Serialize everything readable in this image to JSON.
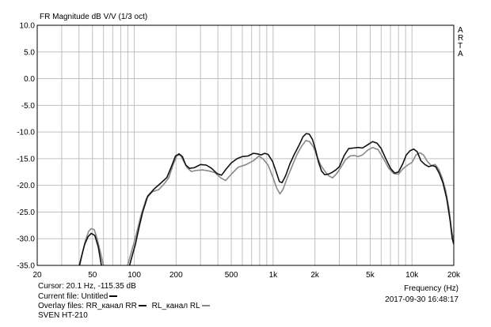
{
  "chart_data": {
    "type": "line",
    "title": "FR Magnitude dB V/V (1/3 oct)",
    "xlabel": "Frequency (Hz)",
    "ylabel": "",
    "xscale": "log",
    "xlim": [
      20,
      20000
    ],
    "ylim": [
      -35,
      10
    ],
    "grid": true,
    "y_ticks": [
      "10.0",
      "5.0",
      "0.0",
      "-5.0",
      "-10.0",
      "-15.0",
      "-20.0",
      "-25.0",
      "-30.0",
      "-35.0"
    ],
    "x_ticks": [
      {
        "value": 20,
        "label": "20"
      },
      {
        "value": 50,
        "label": "50"
      },
      {
        "value": 100,
        "label": "100"
      },
      {
        "value": 200,
        "label": "200"
      },
      {
        "value": 500,
        "label": "500"
      },
      {
        "value": 1000,
        "label": "1k"
      },
      {
        "value": 2000,
        "label": "2k"
      },
      {
        "value": 5000,
        "label": "5k"
      },
      {
        "value": 10000,
        "label": "10k"
      },
      {
        "value": 20000,
        "label": "20k"
      }
    ],
    "side_label": [
      "A",
      "R",
      "T",
      "A"
    ],
    "series": [
      {
        "name": "RR_канал RR",
        "color": "#111111",
        "segments": [
          [
            [
              40.2,
              -35
            ],
            [
              42,
              -33
            ],
            [
              44,
              -31
            ],
            [
              46.5,
              -29.6
            ],
            [
              49,
              -29
            ],
            [
              52,
              -29.4
            ],
            [
              55,
              -31.5
            ],
            [
              58,
              -35
            ]
          ],
          [
            [
              92.5,
              -35
            ],
            [
              97,
              -33
            ],
            [
              102,
              -31
            ],
            [
              108,
              -28
            ],
            [
              115,
              -25
            ],
            [
              125,
              -22
            ],
            [
              140,
              -20.6
            ],
            [
              158,
              -19.4
            ],
            [
              172,
              -18.5
            ],
            [
              185,
              -16.5
            ],
            [
              198,
              -14.5
            ],
            [
              210,
              -14.1
            ],
            [
              222,
              -14.6
            ],
            [
              235,
              -16.2
            ],
            [
              250,
              -16.8
            ],
            [
              270,
              -16.7
            ],
            [
              300,
              -16.1
            ],
            [
              330,
              -16.2
            ],
            [
              360,
              -16.8
            ],
            [
              395,
              -17.8
            ],
            [
              425,
              -18.1
            ],
            [
              460,
              -16.9
            ],
            [
              500,
              -15.8
            ],
            [
              550,
              -15.0
            ],
            [
              600,
              -14.6
            ],
            [
              660,
              -14.5
            ],
            [
              720,
              -14.0
            ],
            [
              770,
              -14.1
            ],
            [
              820,
              -14.3
            ],
            [
              870,
              -14.0
            ],
            [
              920,
              -14.2
            ],
            [
              990,
              -15.5
            ],
            [
              1050,
              -17.4
            ],
            [
              1110,
              -19.3
            ],
            [
              1160,
              -19.5
            ],
            [
              1230,
              -18.2
            ],
            [
              1320,
              -16.0
            ],
            [
              1420,
              -14.2
            ],
            [
              1530,
              -12.6
            ],
            [
              1640,
              -10.9
            ],
            [
              1730,
              -10.3
            ],
            [
              1820,
              -10.4
            ],
            [
              1920,
              -11.4
            ],
            [
              2020,
              -13.3
            ],
            [
              2120,
              -15.6
            ],
            [
              2230,
              -17.3
            ],
            [
              2350,
              -18.0
            ],
            [
              2500,
              -17.9
            ],
            [
              2650,
              -17.6
            ],
            [
              2830,
              -17.1
            ],
            [
              3000,
              -16.5
            ],
            [
              3250,
              -14.4
            ],
            [
              3500,
              -13.1
            ],
            [
              3800,
              -13.0
            ],
            [
              4100,
              -12.9
            ],
            [
              4400,
              -13.0
            ],
            [
              4800,
              -12.4
            ],
            [
              5200,
              -11.8
            ],
            [
              5600,
              -12.1
            ],
            [
              6000,
              -13.1
            ],
            [
              6500,
              -15.1
            ],
            [
              7000,
              -16.8
            ],
            [
              7500,
              -17.7
            ],
            [
              8000,
              -17.5
            ],
            [
              8600,
              -15.9
            ],
            [
              9100,
              -14.3
            ],
            [
              9700,
              -13.5
            ],
            [
              10300,
              -13.2
            ],
            [
              10900,
              -13.7
            ],
            [
              11600,
              -15.4
            ],
            [
              12400,
              -16.1
            ],
            [
              13200,
              -16.5
            ],
            [
              14000,
              -16.3
            ],
            [
              14800,
              -16.5
            ],
            [
              15700,
              -17.7
            ],
            [
              16700,
              -19.5
            ],
            [
              17800,
              -22.5
            ],
            [
              18800,
              -26.5
            ],
            [
              19500,
              -30.0
            ],
            [
              20000,
              -31.0
            ]
          ]
        ]
      },
      {
        "name": "RL_канал RL",
        "color": "#888888",
        "segments": [
          [
            [
              40.5,
              -35
            ],
            [
              42.5,
              -32.5
            ],
            [
              44.5,
              -30.3
            ],
            [
              47,
              -28.6
            ],
            [
              49,
              -28.1
            ],
            [
              51.5,
              -28.3
            ],
            [
              54,
              -30
            ],
            [
              57,
              -32.5
            ],
            [
              60,
              -35
            ]
          ],
          [
            [
              89.5,
              -35
            ],
            [
              94,
              -33
            ],
            [
              99,
              -31
            ],
            [
              105,
              -28.5
            ],
            [
              112,
              -25.5
            ],
            [
              122,
              -22.5
            ],
            [
              135,
              -21.2
            ],
            [
              150,
              -20.8
            ],
            [
              163,
              -19.8
            ],
            [
              177,
              -18.6
            ],
            [
              190,
              -16.2
            ],
            [
              203,
              -14.4
            ],
            [
              215,
              -14.3
            ],
            [
              228,
              -15.6
            ],
            [
              242,
              -16.8
            ],
            [
              258,
              -17.4
            ],
            [
              280,
              -17.2
            ],
            [
              310,
              -17.1
            ],
            [
              345,
              -17.3
            ],
            [
              380,
              -17.6
            ],
            [
              420,
              -18.6
            ],
            [
              455,
              -19.1
            ],
            [
              500,
              -17.9
            ],
            [
              560,
              -16.6
            ],
            [
              640,
              -16.1
            ],
            [
              720,
              -15.4
            ],
            [
              790,
              -14.5
            ],
            [
              850,
              -15.1
            ],
            [
              920,
              -16.2
            ],
            [
              990,
              -18.3
            ],
            [
              1060,
              -20.5
            ],
            [
              1120,
              -21.6
            ],
            [
              1180,
              -20.7
            ],
            [
              1260,
              -18.7
            ],
            [
              1360,
              -16.6
            ],
            [
              1480,
              -14.3
            ],
            [
              1600,
              -12.7
            ],
            [
              1720,
              -11.6
            ],
            [
              1830,
              -11.8
            ],
            [
              1950,
              -12.8
            ],
            [
              2070,
              -14.6
            ],
            [
              2200,
              -16.2
            ],
            [
              2350,
              -17.3
            ],
            [
              2510,
              -18.2
            ],
            [
              2680,
              -18.6
            ],
            [
              2870,
              -17.8
            ],
            [
              3080,
              -16.6
            ],
            [
              3320,
              -15.2
            ],
            [
              3580,
              -14.5
            ],
            [
              3850,
              -14.4
            ],
            [
              4100,
              -14.6
            ],
            [
              4400,
              -14.3
            ],
            [
              4800,
              -13.4
            ],
            [
              5200,
              -12.9
            ],
            [
              5700,
              -13.3
            ],
            [
              6200,
              -14.9
            ],
            [
              6800,
              -16.8
            ],
            [
              7400,
              -17.8
            ],
            [
              8000,
              -17.9
            ],
            [
              8600,
              -16.9
            ],
            [
              9300,
              -16.2
            ],
            [
              10000,
              -15.7
            ],
            [
              10700,
              -14.3
            ],
            [
              11400,
              -13.9
            ],
            [
              12100,
              -14.3
            ],
            [
              12900,
              -15.5
            ],
            [
              13800,
              -16.3
            ],
            [
              14700,
              -16.1
            ],
            [
              15600,
              -17.0
            ],
            [
              16500,
              -18.6
            ],
            [
              17500,
              -21.0
            ],
            [
              18500,
              -24.5
            ],
            [
              19300,
              -28.5
            ],
            [
              20000,
              -30.5
            ]
          ]
        ]
      }
    ]
  },
  "info": {
    "cursor": "Cursor: 20.1 Hz, -115.35 dB",
    "current_file": "Current file: Untitled",
    "overlay_label": "Overlay files:",
    "overlay_1": "RR_канал RR",
    "overlay_2": "RL_канал RL",
    "device": "SVEN HT-210",
    "frequency_label": "Frequency (Hz)",
    "timestamp": "2017-09-30  16:48:17"
  }
}
